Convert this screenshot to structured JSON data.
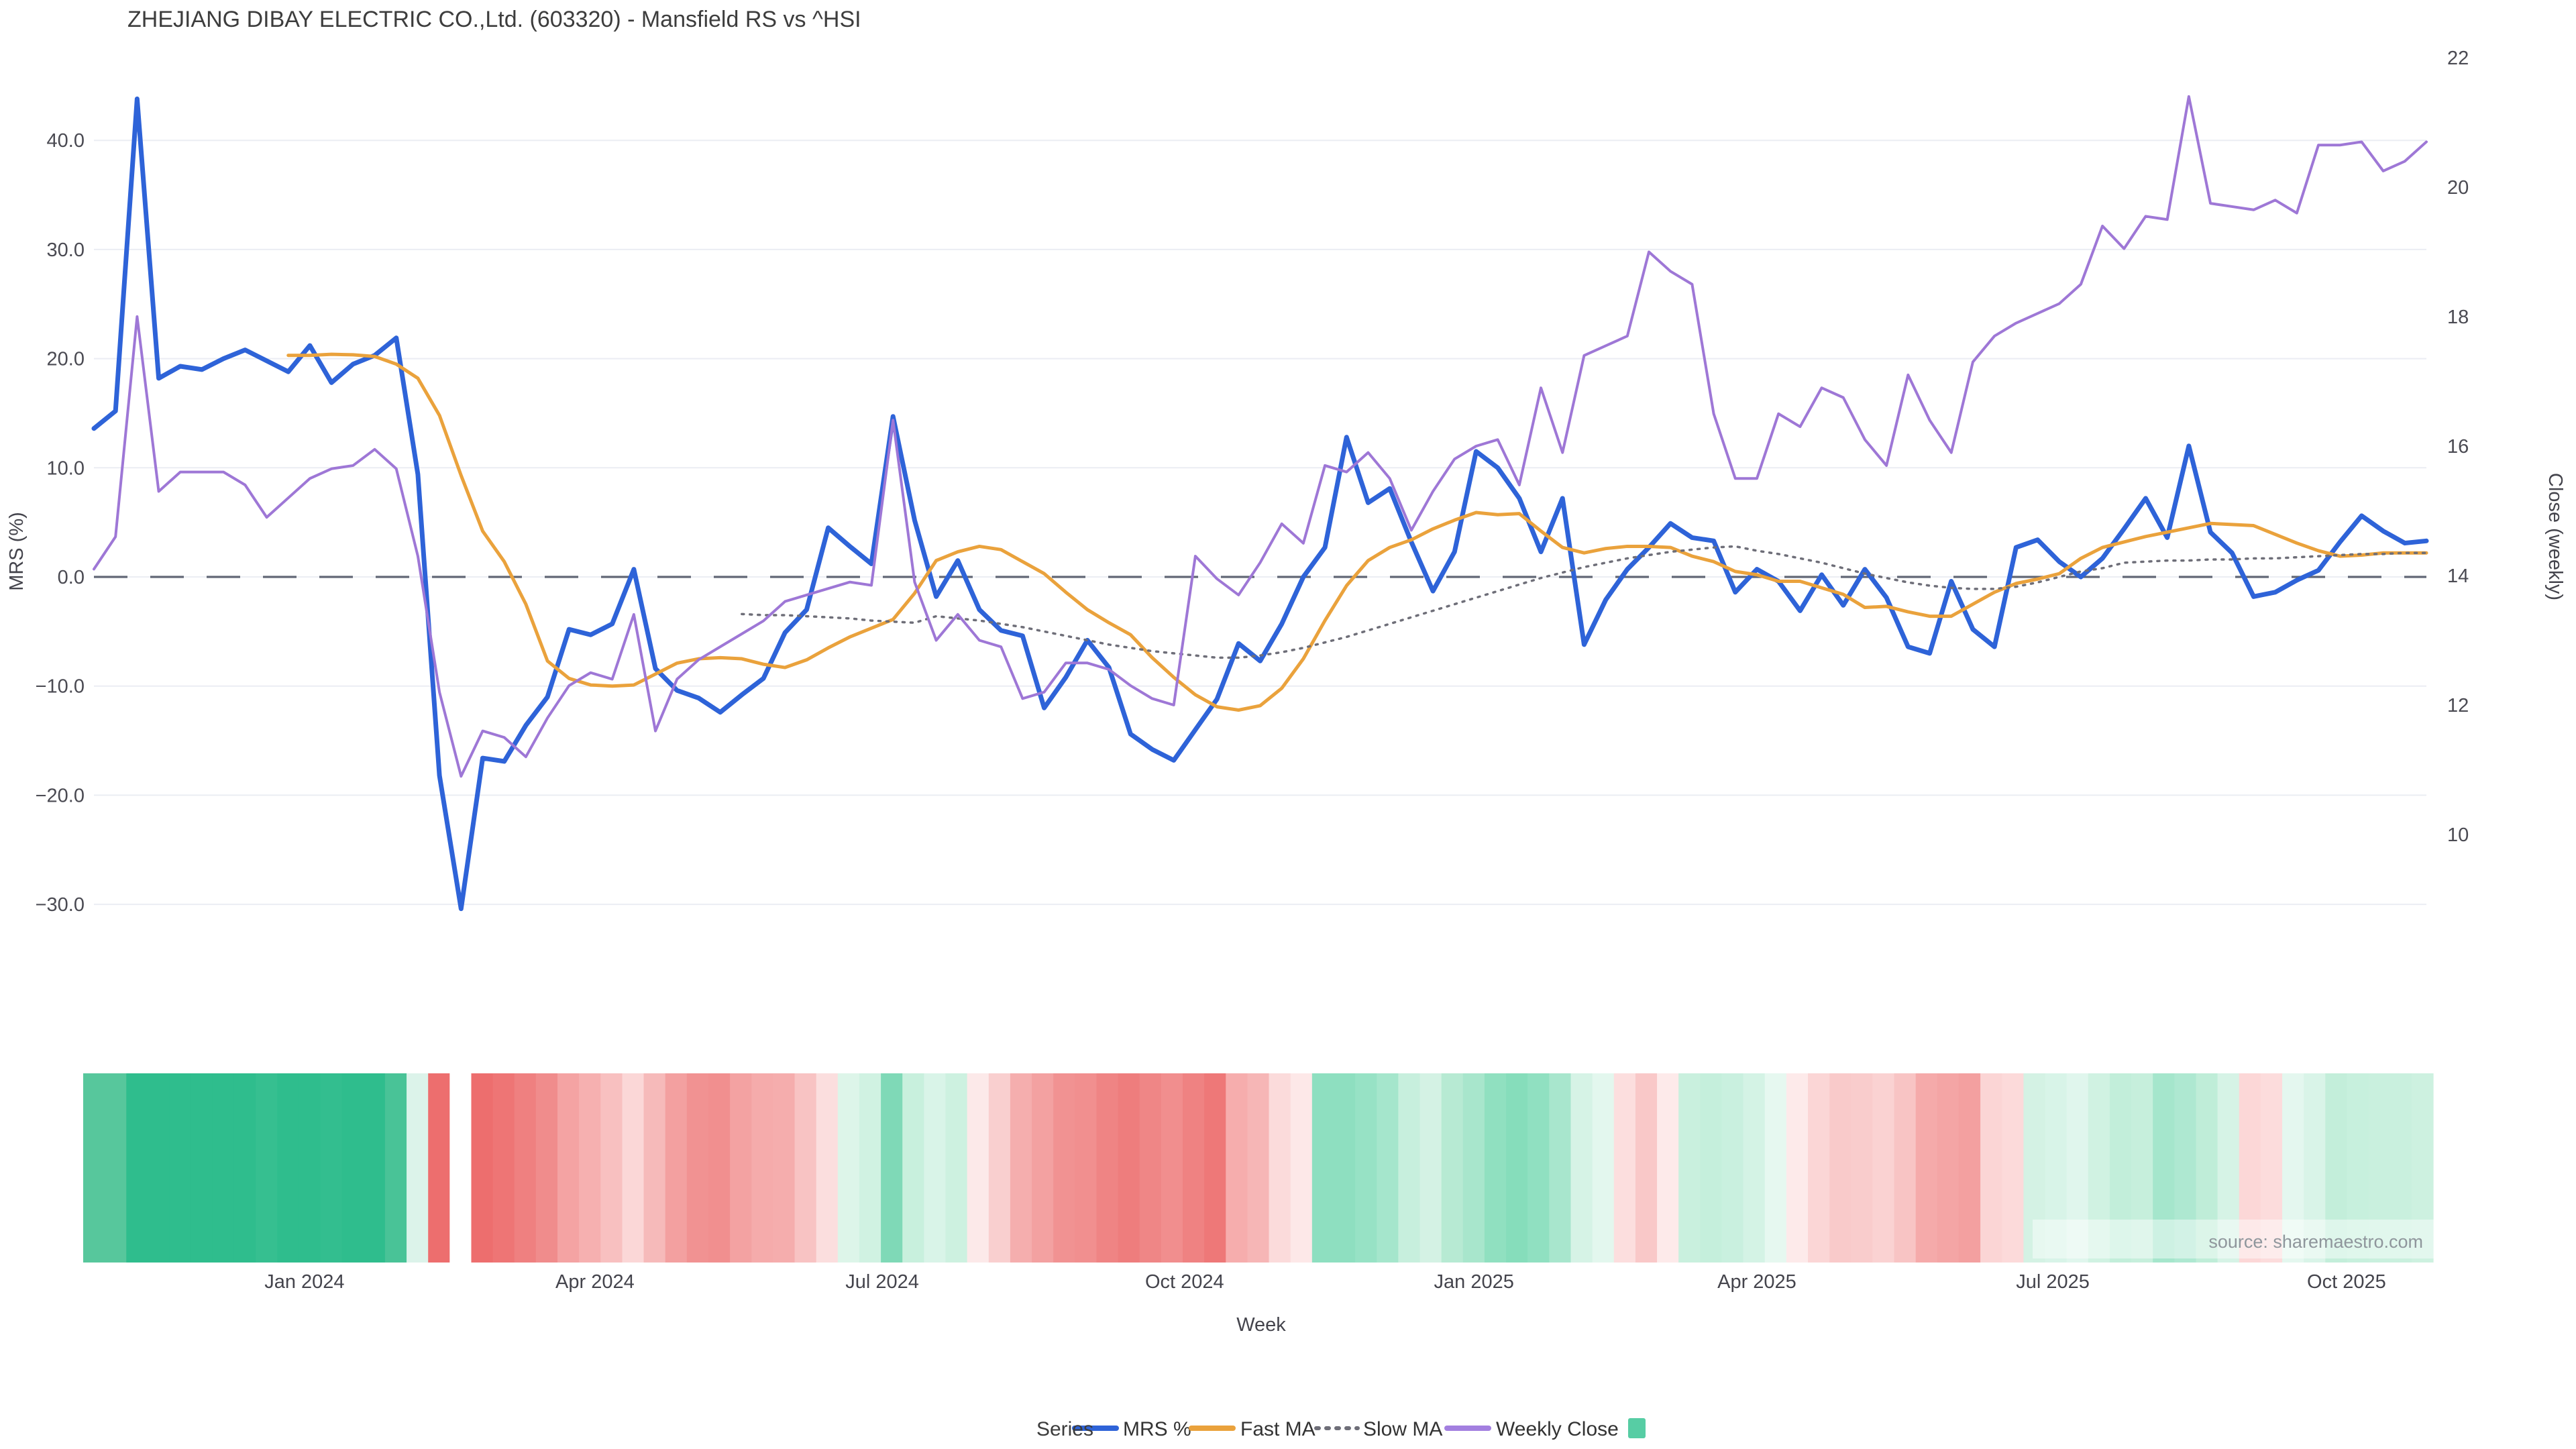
{
  "page": {
    "title": "ZHEJIANG DIBAY ELECTRIC CO.,Ltd. (603320) - Mansfield RS vs ^HSI",
    "source_note": "source: sharemaestro.com"
  },
  "legend": {
    "series_label": "Series",
    "items": [
      {
        "name": "MRS %",
        "marker": "line",
        "color": "#2e63d8"
      },
      {
        "name": "Fast MA",
        "marker": "line",
        "color": "#eaa23c"
      },
      {
        "name": "Slow MA",
        "marker": "dotted",
        "color": "#6e6e78"
      },
      {
        "name": "Weekly Close",
        "marker": "line",
        "color": "#a37fe0"
      },
      {
        "name": "",
        "marker": "square",
        "color": "#57cda4"
      }
    ]
  },
  "chart_data": {
    "type": "line",
    "title": "ZHEJIANG DIBAY ELECTRIC CO.,Ltd. (603320) - Mansfield RS vs ^HSI",
    "xlabel": "Week",
    "grid": true,
    "legend_position": "bottom",
    "left_axis": {
      "label": "MRS (%)",
      "tick_values": [
        40,
        30,
        20,
        10,
        0,
        -10,
        -20,
        -30
      ],
      "tick_labels": [
        "40.0",
        "30.0",
        "20.0",
        "10.0",
        "0.0",
        "−10.0",
        "−20.0",
        "−30.0"
      ],
      "range_note": "zero line dashed at 0.0"
    },
    "right_axis": {
      "label": "Close (weekly)",
      "tick_values": [
        22,
        20,
        18,
        16,
        14,
        12,
        10
      ],
      "tick_labels": [
        "22",
        "20",
        "18",
        "16",
        "14",
        "12",
        "10"
      ]
    },
    "x_ticks": [
      {
        "label": "Jan 2024",
        "index": 9.75
      },
      {
        "label": "Apr 2024",
        "index": 23.2
      },
      {
        "label": "Jul 2024",
        "index": 36.5
      },
      {
        "label": "Oct 2024",
        "index": 50.5
      },
      {
        "label": "Jan 2025",
        "index": 63.9
      },
      {
        "label": "Apr 2025",
        "index": 77.0
      },
      {
        "label": "Jul 2025",
        "index": 90.7
      },
      {
        "label": "Oct 2025",
        "index": 104.3
      }
    ],
    "series": [
      {
        "name": "MRS %",
        "axis": "left",
        "color": "#2e63d8",
        "width": 7,
        "dash": null,
        "values": [
          13.6,
          15.2,
          43.8,
          18.2,
          19.3,
          19.0,
          20.0,
          20.8,
          19.8,
          18.8,
          21.2,
          17.8,
          19.5,
          20.3,
          21.9,
          9.4,
          -18.2,
          -30.4,
          -16.6,
          -16.9,
          -13.6,
          -11.0,
          -4.8,
          -5.3,
          -4.3,
          0.7,
          -8.4,
          -10.4,
          -11.1,
          -12.4,
          -10.8,
          -9.3,
          -5.1,
          -3.0,
          4.5,
          2.8,
          1.2,
          14.7,
          5.2,
          -1.8,
          1.5,
          -3.0,
          -4.9,
          -5.4,
          -12.0,
          -9.2,
          -5.8,
          -8.3,
          -14.4,
          -15.8,
          -16.8,
          -14.0,
          -11.2,
          -6.1,
          -7.7,
          -4.3,
          0.0,
          2.7,
          12.8,
          6.8,
          8.1,
          3.2,
          -1.3,
          2.3,
          11.5,
          10.0,
          7.2,
          2.3,
          7.2,
          -6.2,
          -2.1,
          0.7,
          2.7,
          4.9,
          3.6,
          3.3,
          -1.4,
          0.7,
          -0.4,
          -3.1,
          0.2,
          -2.6,
          0.7,
          -1.9,
          -6.4,
          -7.0,
          -0.4,
          -4.8,
          -6.4,
          2.7,
          3.4,
          1.4,
          0.0,
          1.7,
          4.4,
          7.2,
          3.6,
          12.0,
          4.1,
          2.2,
          -1.8,
          -1.4,
          -0.3,
          0.6,
          3.2,
          5.6,
          4.2,
          3.1,
          3.3
        ]
      },
      {
        "name": "Fast MA",
        "axis": "left",
        "color": "#eaa23c",
        "width": 5,
        "dash": null,
        "values": [
          null,
          null,
          null,
          null,
          null,
          null,
          null,
          null,
          null,
          20.3,
          20.3,
          20.4,
          20.35,
          20.2,
          19.5,
          18.2,
          14.8,
          9.3,
          4.2,
          1.4,
          -2.5,
          -7.7,
          -9.3,
          -9.9,
          -10.0,
          -9.9,
          -8.9,
          -7.9,
          -7.5,
          -7.4,
          -7.5,
          -8.0,
          -8.3,
          -7.6,
          -6.5,
          -5.5,
          -4.7,
          -3.9,
          -1.5,
          1.5,
          2.3,
          2.8,
          2.5,
          1.4,
          0.3,
          -1.4,
          -3.0,
          -4.2,
          -5.3,
          -7.4,
          -9.2,
          -10.8,
          -11.9,
          -12.2,
          -11.8,
          -10.2,
          -7.5,
          -4.0,
          -0.8,
          1.5,
          2.7,
          3.4,
          4.4,
          5.2,
          5.9,
          5.7,
          5.8,
          4.2,
          2.7,
          2.2,
          2.6,
          2.8,
          2.8,
          2.7,
          1.9,
          1.4,
          0.5,
          0.2,
          -0.4,
          -0.4,
          -1.0,
          -1.6,
          -2.8,
          -2.7,
          -3.2,
          -3.6,
          -3.6,
          -2.5,
          -1.4,
          -0.6,
          -0.2,
          0.3,
          1.7,
          2.7,
          3.2,
          3.7,
          4.1,
          4.5,
          4.9,
          4.8,
          4.7,
          3.9,
          3.1,
          2.4,
          1.9,
          2.0,
          2.2,
          2.2,
          2.2
        ]
      },
      {
        "name": "Slow MA",
        "axis": "left",
        "color": "#6e6e78",
        "width": 3.5,
        "dash": "3 9",
        "values": [
          null,
          null,
          null,
          null,
          null,
          null,
          null,
          null,
          null,
          null,
          null,
          null,
          null,
          null,
          null,
          null,
          null,
          null,
          null,
          null,
          null,
          null,
          null,
          null,
          null,
          null,
          null,
          null,
          null,
          null,
          -3.4,
          -3.5,
          -3.5,
          -3.6,
          -3.7,
          -3.8,
          -4.0,
          -4.1,
          -4.2,
          -3.6,
          -3.8,
          -4.0,
          -4.3,
          -4.6,
          -5.0,
          -5.4,
          -5.8,
          -6.2,
          -6.5,
          -6.8,
          -7.0,
          -7.2,
          -7.4,
          -7.4,
          -7.2,
          -6.9,
          -6.5,
          -6.0,
          -5.5,
          -4.9,
          -4.3,
          -3.7,
          -3.1,
          -2.5,
          -1.9,
          -1.3,
          -0.7,
          -0.1,
          0.4,
          0.9,
          1.3,
          1.7,
          2.0,
          2.3,
          2.5,
          2.7,
          2.8,
          2.4,
          2.1,
          1.7,
          1.3,
          0.8,
          0.3,
          -0.1,
          -0.5,
          -0.8,
          -1.0,
          -1.1,
          -1.1,
          -0.9,
          -0.5,
          0.0,
          0.5,
          0.8,
          1.3,
          1.4,
          1.5,
          1.5,
          1.6,
          1.6,
          1.7,
          1.7,
          1.8,
          1.9,
          2.0,
          2.1,
          2.1,
          2.2,
          2.2
        ]
      },
      {
        "name": "Weekly Close",
        "axis": "right",
        "color": "#9e77d6",
        "width": 4,
        "dash": null,
        "values": [
          14.1,
          14.6,
          18.0,
          15.3,
          15.6,
          15.6,
          15.6,
          15.4,
          14.9,
          15.2,
          15.5,
          15.65,
          15.7,
          15.95,
          15.65,
          14.3,
          12.2,
          10.9,
          11.6,
          11.5,
          11.2,
          11.8,
          12.3,
          12.5,
          12.4,
          13.4,
          11.6,
          12.4,
          12.7,
          12.9,
          13.1,
          13.3,
          13.6,
          13.7,
          13.8,
          13.9,
          13.85,
          16.4,
          13.9,
          13.0,
          13.4,
          13.0,
          12.9,
          12.1,
          12.2,
          12.65,
          12.65,
          12.55,
          12.3,
          12.1,
          12.0,
          14.3,
          13.95,
          13.7,
          14.2,
          14.8,
          14.5,
          15.7,
          15.6,
          15.9,
          15.5,
          14.7,
          15.3,
          15.8,
          16.0,
          16.1,
          15.4,
          16.9,
          15.9,
          17.4,
          17.55,
          17.7,
          19.0,
          18.7,
          18.5,
          16.5,
          15.5,
          15.5,
          16.5,
          16.3,
          16.9,
          16.75,
          16.1,
          15.7,
          17.1,
          16.4,
          15.9,
          17.3,
          17.7,
          17.9,
          18.05,
          18.2,
          18.5,
          19.4,
          19.05,
          19.55,
          19.5,
          21.4,
          19.75,
          19.7,
          19.65,
          19.8,
          19.6,
          20.65,
          20.65,
          20.7,
          20.25,
          20.4,
          20.7
        ]
      }
    ],
    "heatmap_strip": {
      "description": "weekly red-green intensity strip under chart",
      "colors": [
        "#57c79c",
        "#57c79c",
        "#2fbd8d",
        "#2fbd8d",
        "#2fbd8d",
        "#2fbd8d",
        "#2fbd8d",
        "#2fbd8d",
        "#36bf90",
        "#2fbd8d",
        "#2fbd8d",
        "#33be8f",
        "#2fbd8d",
        "#2fbd8d",
        "#49c397",
        "#dcf3ea",
        "#ed6e6e",
        "#ffffff",
        "#ed6e6e",
        "#ee7575",
        "#ef8080",
        "#f08c8c",
        "#f4a3a3",
        "#f6b0b0",
        "#f8c0c0",
        "#fbd7d7",
        "#f6baba",
        "#f3a0a0",
        "#f19292",
        "#f18f8f",
        "#f3a2a2",
        "#f5abab",
        "#f5adad",
        "#f8c3c3",
        "#fbdede",
        "#ddf5e9",
        "#d0f2e2",
        "#7fd9b7",
        "#c8f0dd",
        "#d9f4e8",
        "#cdf1e0",
        "#fce9e9",
        "#f9cfcf",
        "#f5aeae",
        "#f3a1a1",
        "#f19292",
        "#f18f8f",
        "#ef8484",
        "#ee7d7d",
        "#ef8686",
        "#f18e8e",
        "#ef8282",
        "#ee7878",
        "#f6adad",
        "#f6b6b6",
        "#fbdbdb",
        "#fde8e8",
        "#8edfc0",
        "#8edfc0",
        "#97e2c5",
        "#a5e6cc",
        "#c7efdd",
        "#d4f2e4",
        "#b7ead3",
        "#a8e6cc",
        "#90e0c0",
        "#86ddbb",
        "#90e0c1",
        "#a8e6cd",
        "#d6f3e6",
        "#e3f7ee",
        "#fcdede",
        "#f9c8c8",
        "#fdeaea",
        "#c9f0de",
        "#c5efdc",
        "#c9f0df",
        "#d4f3e5",
        "#e6f8f0",
        "#fdeaea",
        "#fbd6d6",
        "#f9caca",
        "#f9cccc",
        "#fad2d2",
        "#f8c4c4",
        "#f5aaaa",
        "#f4a5a5",
        "#f3a0a0",
        "#fbd5d5",
        "#fcdada",
        "#d4f2e4",
        "#d8f4e8",
        "#e0f6ed",
        "#d0f2e2",
        "#c2eeda",
        "#c6efdc",
        "#a5e6cc",
        "#aee8d1",
        "#bfedd8",
        "#d6f3e6",
        "#fcd7d7",
        "#fcdcdc",
        "#e4f7ef",
        "#d9f4e8",
        "#c3eeda",
        "#c7f0dd",
        "#c9f0de",
        "#c9f0de",
        "#cdf1e0"
      ]
    },
    "colors": {
      "grid": "#ebedf3",
      "zero_line": "#4a4f60",
      "background": "#ffffff"
    }
  }
}
